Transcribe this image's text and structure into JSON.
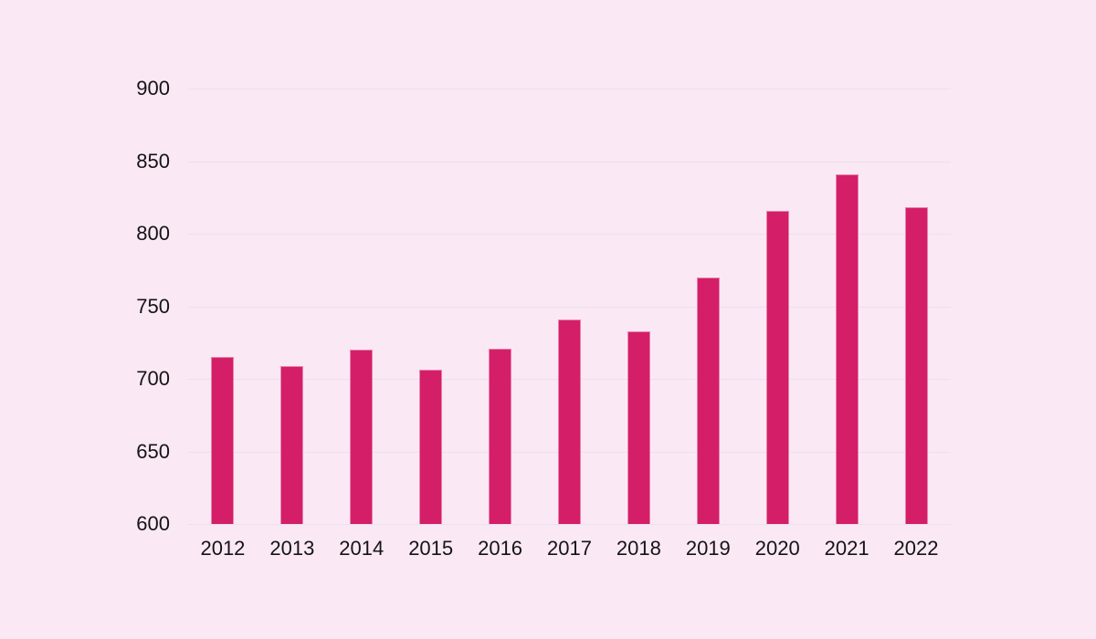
{
  "chart_data": {
    "type": "bar",
    "title": "",
    "xlabel": "",
    "ylabel": "",
    "categories": [
      "2012",
      "2013",
      "2014",
      "2015",
      "2016",
      "2017",
      "2018",
      "2019",
      "2020",
      "2021",
      "2022"
    ],
    "values": [
      715,
      709,
      720,
      706,
      721,
      741,
      733,
      770,
      816,
      841,
      818
    ],
    "ylim": [
      600,
      900
    ],
    "yticks": [
      600,
      650,
      700,
      750,
      800,
      850,
      900
    ],
    "grid": true,
    "legend": "none",
    "colors": {
      "background": "#fbe8f5",
      "bar": "#d41e68",
      "bar_edge": "rgba(255,255,255,0.45)",
      "gridline": "#e9e1ee",
      "axis_text": "#141414"
    }
  }
}
